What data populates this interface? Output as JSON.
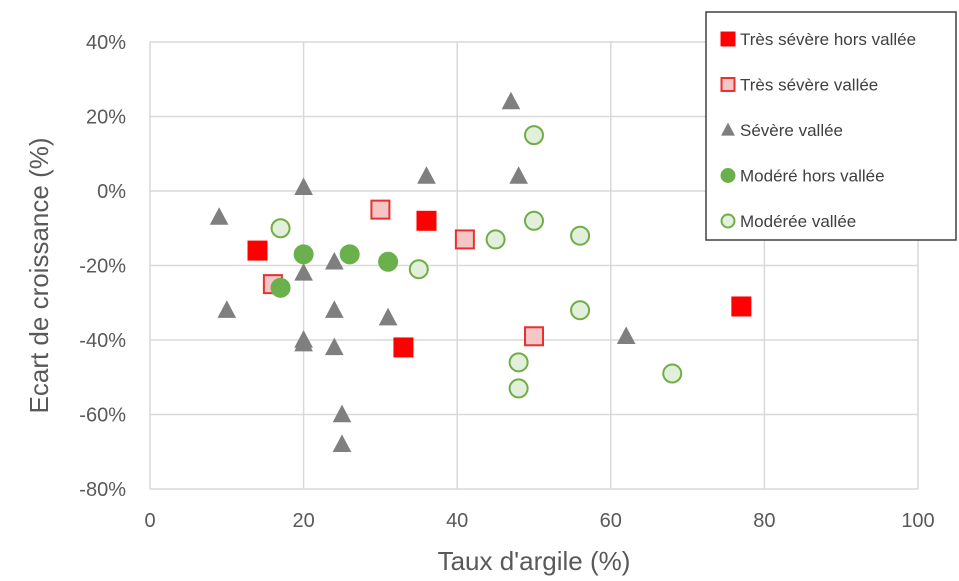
{
  "chart_data": {
    "type": "scatter",
    "title": "",
    "xlabel": "Taux d'argile (%)",
    "ylabel": "Ecart de croissance (%)",
    "xlim": [
      0,
      100
    ],
    "ylim": [
      -80,
      40
    ],
    "x_ticks": [
      0,
      20,
      40,
      60,
      80,
      100
    ],
    "y_ticks": [
      40,
      20,
      0,
      -20,
      -40,
      -60,
      -80
    ],
    "x_tick_labels": [
      "0",
      "20",
      "40",
      "60",
      "80",
      "100"
    ],
    "y_tick_labels": [
      "40%",
      "20%",
      "0%",
      "-20%",
      "-40%",
      "-60%",
      "-80%"
    ],
    "grid": true,
    "legend_position": "top-right",
    "series": [
      {
        "name": "Très sévère hors vallée",
        "marker": "square",
        "fill": "#ff0000",
        "stroke": "#ff0000",
        "points": [
          [
            14,
            -16
          ],
          [
            36,
            -8
          ],
          [
            33,
            -42
          ],
          [
            77,
            -31
          ]
        ]
      },
      {
        "name": "Très sévère vallée",
        "marker": "square",
        "fill": "#f4c6c6",
        "stroke": "#e8312f",
        "points": [
          [
            16,
            -25
          ],
          [
            30,
            -5
          ],
          [
            41,
            -13
          ],
          [
            50,
            -39
          ]
        ]
      },
      {
        "name": "Sévère vallée",
        "marker": "triangle",
        "fill": "#7f7f7f",
        "stroke": "#7f7f7f",
        "points": [
          [
            9,
            -7
          ],
          [
            10,
            -32
          ],
          [
            20,
            1
          ],
          [
            20,
            -22
          ],
          [
            20,
            -40
          ],
          [
            20,
            -41
          ],
          [
            24,
            -19
          ],
          [
            24,
            -32
          ],
          [
            24,
            -42
          ],
          [
            25,
            -60
          ],
          [
            25,
            -68
          ],
          [
            31,
            -34
          ],
          [
            36,
            4
          ],
          [
            47,
            24
          ],
          [
            48,
            4
          ],
          [
            62,
            -39
          ]
        ]
      },
      {
        "name": "Modéré hors vallée",
        "marker": "circle",
        "fill": "#6ab04c",
        "stroke": "#6ab04c",
        "points": [
          [
            17,
            -26
          ],
          [
            20,
            -17
          ],
          [
            26,
            -17
          ],
          [
            31,
            -19
          ]
        ]
      },
      {
        "name": "Modérée vallée",
        "marker": "circle",
        "fill": "#e2efda",
        "stroke": "#70ad47",
        "points": [
          [
            17,
            -10
          ],
          [
            35,
            -21
          ],
          [
            45,
            -13
          ],
          [
            48,
            -46
          ],
          [
            48,
            -53
          ],
          [
            50,
            -8
          ],
          [
            50,
            15
          ],
          [
            56,
            -12
          ],
          [
            56,
            -32
          ],
          [
            68,
            -49
          ]
        ]
      }
    ]
  }
}
